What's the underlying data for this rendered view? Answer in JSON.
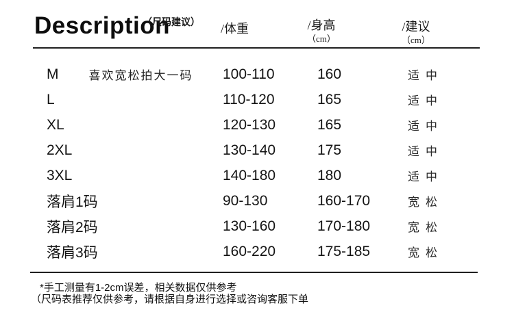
{
  "header": {
    "title": "Description",
    "subtitle": "（尺码建议）",
    "columns": [
      {
        "label": "/体重",
        "unit": ""
      },
      {
        "label": "/身高",
        "unit": "（cm）"
      },
      {
        "label": "/建议",
        "unit": "（cm）"
      }
    ]
  },
  "table": {
    "rows": [
      {
        "size": "M",
        "note": "喜欢宽松拍大一码",
        "weight": "100-110",
        "height": "160",
        "fit": "适中"
      },
      {
        "size": "L",
        "note": "",
        "weight": "110-120",
        "height": "165",
        "fit": "适中"
      },
      {
        "size": "XL",
        "note": "",
        "weight": "120-130",
        "height": "165",
        "fit": "适中"
      },
      {
        "size": "2XL",
        "note": "",
        "weight": "130-140",
        "height": "175",
        "fit": "适中"
      },
      {
        "size": "3XL",
        "note": "",
        "weight": "140-180",
        "height": "180",
        "fit": "适中"
      },
      {
        "size": "落肩1码",
        "note": "",
        "weight": "90-130",
        "height": "160-170",
        "fit": "宽松"
      },
      {
        "size": "落肩2码",
        "note": "",
        "weight": "130-160",
        "height": "170-180",
        "fit": "宽松"
      },
      {
        "size": "落肩3码",
        "note": "",
        "weight": "160-220",
        "height": "175-185",
        "fit": "宽松"
      }
    ]
  },
  "footer": {
    "line1": "*手工测量有1-2cm误差，相关数据仅供参考",
    "line2": "（尺码表推荐仅供参考，请根据自身进行选择或咨询客服下单"
  },
  "colors": {
    "background": "#ffffff",
    "text": "#111111",
    "rule": "#1f1f1f"
  }
}
